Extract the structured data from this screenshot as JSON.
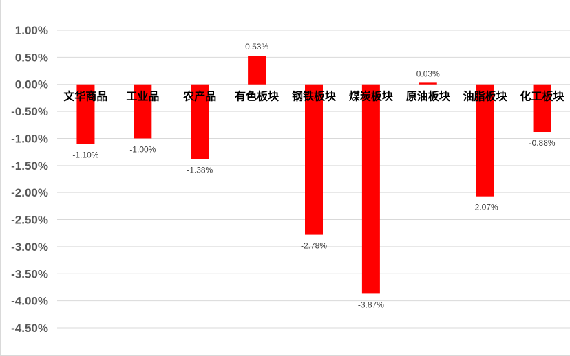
{
  "chart_data": {
    "type": "bar",
    "title": "",
    "xlabel": "",
    "ylabel": "",
    "categories": [
      "文华商品",
      "工业品",
      "农产品",
      "有色板块",
      "钢铁板块",
      "煤炭板块",
      "原油板块",
      "油脂板块",
      "化工板块"
    ],
    "values": [
      -1.1,
      -1.0,
      -1.38,
      0.53,
      -2.78,
      -3.87,
      0.03,
      -2.07,
      -0.88
    ],
    "data_labels": [
      "-1.10%",
      "-1.00%",
      "-1.38%",
      "0.53%",
      "-2.78%",
      "-3.87%",
      "0.03%",
      "-2.07%",
      "-0.88%"
    ],
    "ylim": [
      -4.5,
      1.0
    ],
    "yticks": [
      1.0,
      0.5,
      0.0,
      -0.5,
      -1.0,
      -1.5,
      -2.0,
      -2.5,
      -3.0,
      -3.5,
      -4.0,
      -4.5
    ],
    "ytick_labels": [
      "1.00%",
      "0.50%",
      "0.00%",
      "-0.50%",
      "-1.00%",
      "-1.50%",
      "-2.00%",
      "-2.50%",
      "-3.00%",
      "-3.50%",
      "-4.00%",
      "-4.50%"
    ],
    "grid": true,
    "legend": "none",
    "bar_color": "#ff0000",
    "grid_color": "#d9d9d9"
  }
}
